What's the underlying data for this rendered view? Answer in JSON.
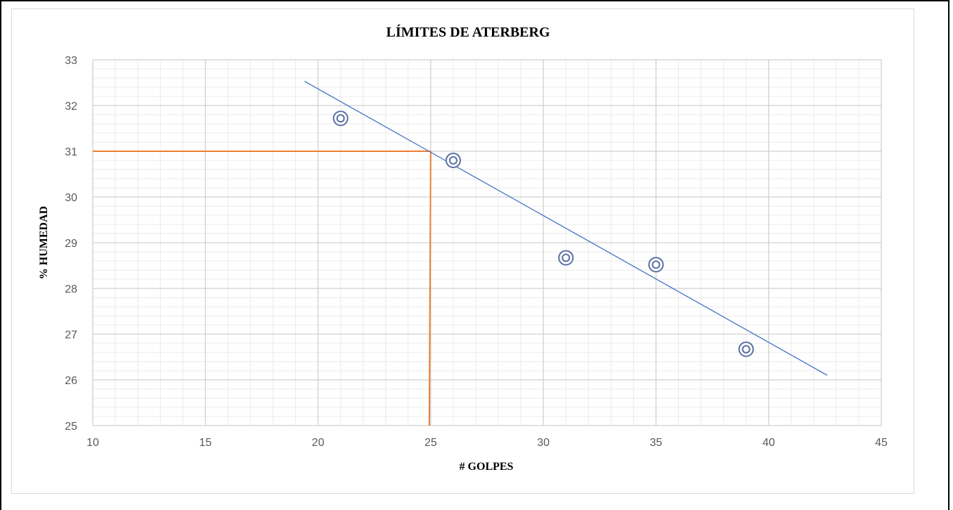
{
  "chart_data": {
    "type": "scatter",
    "title": "LÍMITES DE ATERBERG",
    "xlabel": "# GOLPES",
    "ylabel": "% HUMEDAD",
    "xlim": [
      10,
      45
    ],
    "ylim": [
      25,
      33
    ],
    "x_ticks": [
      10,
      15,
      20,
      25,
      30,
      35,
      40,
      45
    ],
    "y_ticks": [
      25,
      26,
      27,
      28,
      29,
      30,
      31,
      32,
      33
    ],
    "grid": true,
    "legend": "none",
    "series": [
      {
        "values": [
          {
            "x": 21,
            "y": 31.72
          },
          {
            "x": 26,
            "y": 30.8
          },
          {
            "x": 31,
            "y": 28.67
          },
          {
            "x": 35,
            "y": 28.52
          },
          {
            "x": 39,
            "y": 26.67
          }
        ],
        "marker": "double-circle",
        "color": "#5a6fa3"
      }
    ],
    "trendline": {
      "type": "linear",
      "x_start": 19.4,
      "y_start": 32.53,
      "x_end": 42.6,
      "y_end": 26.1,
      "color": "#4472c4"
    },
    "reference_lines": {
      "x": 25,
      "y": 31.0,
      "color": "#ed7d31"
    }
  }
}
